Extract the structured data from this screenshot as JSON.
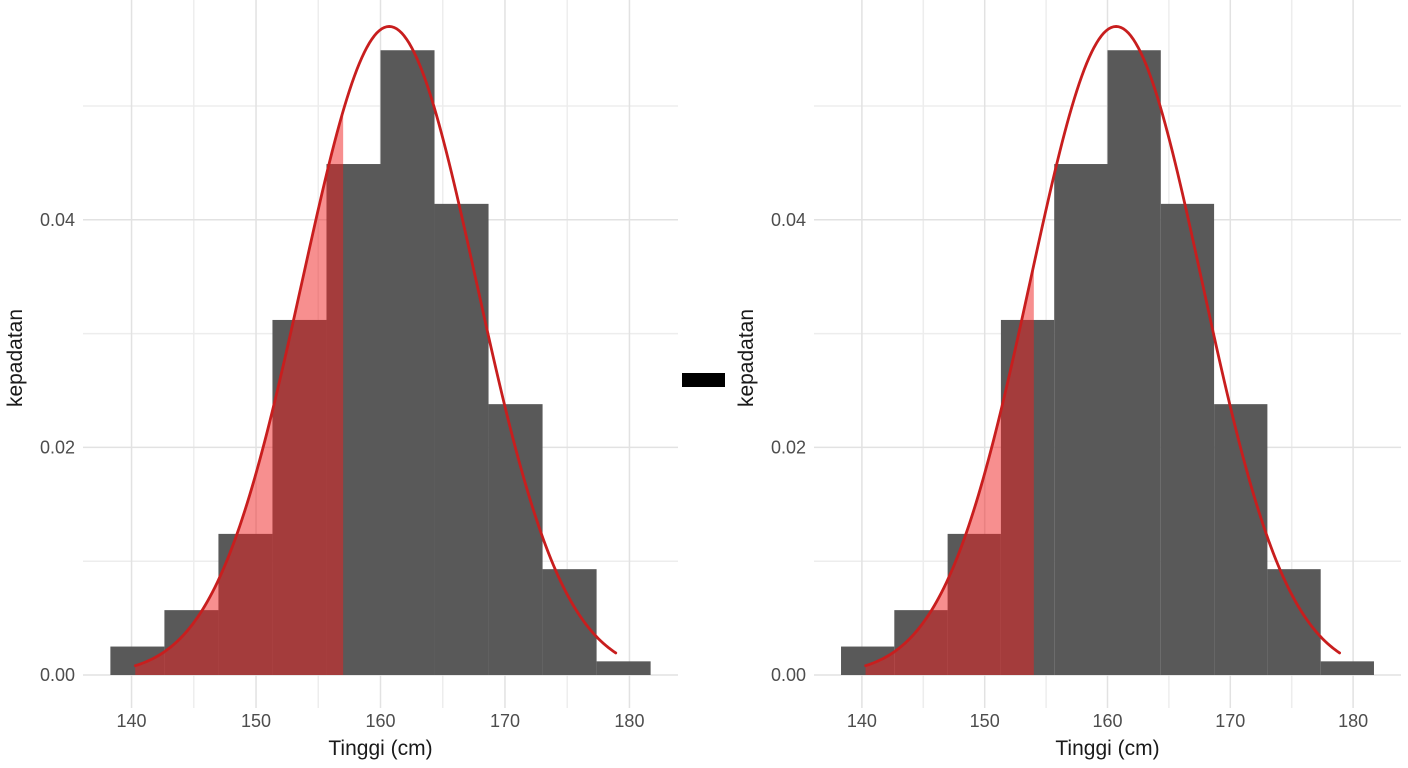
{
  "figure": {
    "background": "#FFFFFF",
    "operator": {
      "symbol": "minus"
    },
    "colors": {
      "bar": "#595959",
      "curve": "#C81E1E",
      "shade": "#F02020",
      "shade_opacity": 0.5,
      "grid_major": "#E2E2E2",
      "grid_minor": "#EDEDED",
      "tick_text": "#4D4D4D",
      "title_text": "#1A1A1A",
      "operator_color": "#000000"
    }
  },
  "chart_data": [
    {
      "type": "histogram",
      "title": "",
      "xlabel": "Tinggi (cm)",
      "ylabel": "kepadatan",
      "xlim": [
        136.1,
        183.9
      ],
      "ylim": [
        -0.0029,
        0.0593
      ],
      "grid": "on",
      "legend": "none",
      "x_tick_values": [
        140,
        150,
        160,
        170,
        180
      ],
      "x_tick_labels": [
        "140",
        "150",
        "160",
        "170",
        "180"
      ],
      "x_minor_gridlines": [
        145,
        155,
        165,
        175
      ],
      "y_tick_values": [
        0,
        0.02,
        0.04
      ],
      "y_tick_labels": [
        "0.00",
        "0.02",
        "0.04"
      ],
      "y_minor_gridlines": [
        0.01,
        0.03,
        0.05
      ],
      "bin_edges": [
        138.3,
        142.64,
        146.98,
        151.32,
        155.66,
        160.0,
        164.34,
        168.68,
        173.02,
        177.36,
        181.7
      ],
      "bin_densities": [
        0.0025,
        0.0057,
        0.0124,
        0.0312,
        0.0449,
        0.0549,
        0.0414,
        0.0238,
        0.0093,
        0.0012
      ],
      "normal_curve": {
        "mean": 160.7,
        "sd": 7.0,
        "x_from": 140.3,
        "x_to": 178.9
      },
      "shaded_region": {
        "x_from": 140.3,
        "x_to": 157,
        "description": "red half-transparent area under normal curve left of 157"
      }
    },
    {
      "type": "histogram",
      "title": "",
      "xlabel": "Tinggi (cm)",
      "ylabel": "kepadatan",
      "xlim": [
        136.1,
        183.9
      ],
      "ylim": [
        -0.0029,
        0.0593
      ],
      "grid": "on",
      "legend": "none",
      "x_tick_values": [
        140,
        150,
        160,
        170,
        180
      ],
      "x_tick_labels": [
        "140",
        "150",
        "160",
        "170",
        "180"
      ],
      "x_minor_gridlines": [
        145,
        155,
        165,
        175
      ],
      "y_tick_values": [
        0,
        0.02,
        0.04
      ],
      "y_tick_labels": [
        "0.00",
        "0.02",
        "0.04"
      ],
      "y_minor_gridlines": [
        0.01,
        0.03,
        0.05
      ],
      "bin_edges": [
        138.3,
        142.64,
        146.98,
        151.32,
        155.66,
        160.0,
        164.34,
        168.68,
        173.02,
        177.36,
        181.7
      ],
      "bin_densities": [
        0.0025,
        0.0057,
        0.0124,
        0.0312,
        0.0449,
        0.0549,
        0.0414,
        0.0238,
        0.0093,
        0.0012
      ],
      "normal_curve": {
        "mean": 160.7,
        "sd": 7.0,
        "x_from": 140.3,
        "x_to": 178.9
      },
      "shaded_region": {
        "x_from": 140.3,
        "x_to": 154,
        "description": "red half-transparent area under normal curve left of 154"
      }
    }
  ]
}
